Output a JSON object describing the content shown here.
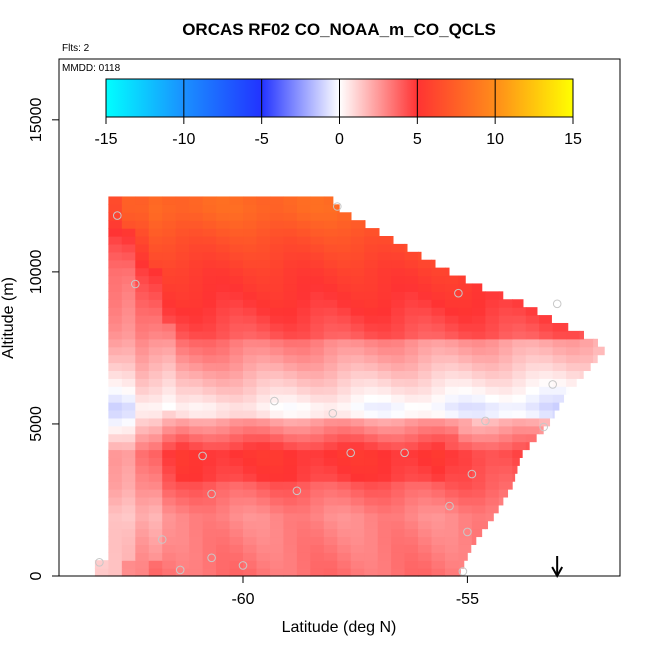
{
  "chart_data": {
    "type": "heatmap",
    "title": "ORCAS RF02 CO_NOAA_m_CO_QCLS",
    "annotations": {
      "flights": "Flts: 2",
      "date": "MMDD: 0118"
    },
    "xlabel": "Latitude (deg N)",
    "ylabel": "Altitude (m)",
    "xlim": [
      -64.1,
      -51.6
    ],
    "ylim": [
      0,
      17000
    ],
    "x_ticks": [
      -60,
      -55
    ],
    "x_tick_labels": [
      "-60",
      "-55"
    ],
    "y_ticks": [
      0,
      5000,
      10000,
      15000
    ],
    "y_tick_labels": [
      "0",
      "5000",
      "10000",
      "15000"
    ],
    "colorbar": {
      "range": [
        -15,
        15
      ],
      "ticks": [
        -15,
        -10,
        -5,
        0,
        5,
        10,
        15
      ],
      "tick_labels": [
        "-15",
        "-10",
        "-5",
        "0",
        "5",
        "10",
        "15"
      ],
      "stops": [
        {
          "value": -15,
          "color": "#00ffff"
        },
        {
          "value": -10,
          "color": "#1a90ff"
        },
        {
          "value": -5,
          "color": "#2233ff"
        },
        {
          "value": 0,
          "color": "#ffffff"
        },
        {
          "value": 5,
          "color": "#ff3333"
        },
        {
          "value": 10,
          "color": "#ff8c1a"
        },
        {
          "value": 15,
          "color": "#ffff00"
        }
      ]
    },
    "envelope": {
      "lat_left": -63.0,
      "lat_right_by_altitude": [
        {
          "alt": 0,
          "lat": -55.2
        },
        {
          "alt": 1000,
          "lat": -54.9
        },
        {
          "alt": 2000,
          "lat": -54.4
        },
        {
          "alt": 3000,
          "lat": -54.0
        },
        {
          "alt": 4000,
          "lat": -53.8
        },
        {
          "alt": 5000,
          "lat": -53.2
        },
        {
          "alt": 6000,
          "lat": -52.8
        },
        {
          "alt": 7000,
          "lat": -52.2
        },
        {
          "alt": 7500,
          "lat": -51.9
        },
        {
          "alt": 8000,
          "lat": -52.5
        },
        {
          "alt": 8500,
          "lat": -53.2
        },
        {
          "alt": 9000,
          "lat": -53.8
        },
        {
          "alt": 9500,
          "lat": -54.7
        },
        {
          "alt": 10000,
          "lat": -55.4
        },
        {
          "alt": 10500,
          "lat": -56.0
        },
        {
          "alt": 11000,
          "lat": -56.6
        },
        {
          "alt": 11500,
          "lat": -57.2
        },
        {
          "alt": 12000,
          "lat": -57.8
        },
        {
          "alt": 12300,
          "lat": -58.0
        }
      ],
      "bottom_left_lat": -63.3
    },
    "anomaly_profile": [
      {
        "alt": 0,
        "value": 3.5
      },
      {
        "alt": 1000,
        "value": 3.2
      },
      {
        "alt": 2000,
        "value": 2.9
      },
      {
        "alt": 3000,
        "value": 4.0
      },
      {
        "alt": 4000,
        "value": 4.6
      },
      {
        "alt": 5000,
        "value": 2.0
      },
      {
        "alt": 5500,
        "value": 0.8
      },
      {
        "alt": 6000,
        "value": 1.6
      },
      {
        "alt": 7000,
        "value": 3.0
      },
      {
        "alt": 8000,
        "value": 4.2
      },
      {
        "alt": 9000,
        "value": 5.0
      },
      {
        "alt": 10000,
        "value": 5.6
      },
      {
        "alt": 11000,
        "value": 6.6
      },
      {
        "alt": 12000,
        "value": 8.0
      }
    ],
    "samples": [
      {
        "lat": -62.8,
        "alt": 11850
      },
      {
        "lat": -62.4,
        "alt": 9600
      },
      {
        "lat": -57.9,
        "alt": 12150
      },
      {
        "lat": -55.2,
        "alt": 9300
      },
      {
        "lat": -53.0,
        "alt": 8950
      },
      {
        "lat": -53.1,
        "alt": 6300
      },
      {
        "lat": -53.3,
        "alt": 4900
      },
      {
        "lat": -54.6,
        "alt": 5100
      },
      {
        "lat": -58.0,
        "alt": 5350
      },
      {
        "lat": -59.3,
        "alt": 5750
      },
      {
        "lat": -60.9,
        "alt": 3950
      },
      {
        "lat": -57.6,
        "alt": 4050
      },
      {
        "lat": -56.4,
        "alt": 4050
      },
      {
        "lat": -54.9,
        "alt": 3350
      },
      {
        "lat": -60.7,
        "alt": 2700
      },
      {
        "lat": -58.8,
        "alt": 2800
      },
      {
        "lat": -55.4,
        "alt": 2300
      },
      {
        "lat": -61.8,
        "alt": 1200
      },
      {
        "lat": -55.0,
        "alt": 1450
      },
      {
        "lat": -63.2,
        "alt": 450
      },
      {
        "lat": -60.7,
        "alt": 600
      },
      {
        "lat": -61.4,
        "alt": 200
      },
      {
        "lat": -60.0,
        "alt": 350
      },
      {
        "lat": -55.1,
        "alt": 150
      }
    ],
    "marker": {
      "lat": -53.0,
      "label": "arrow"
    }
  }
}
